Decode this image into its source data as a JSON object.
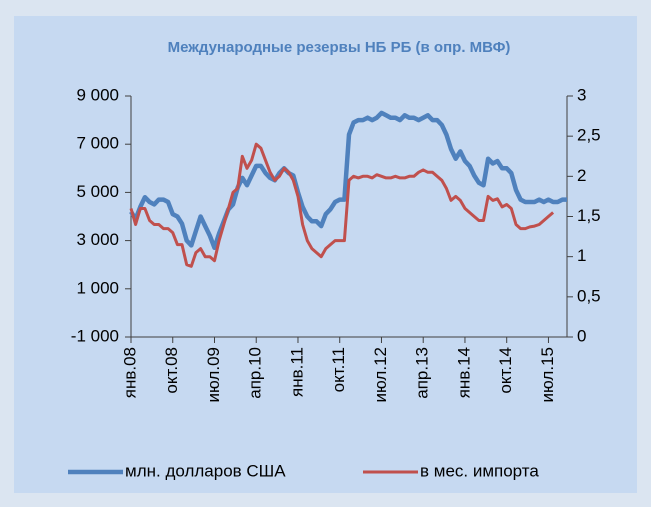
{
  "chart_data": {
    "type": "line",
    "title": "Международные резервы НБ РБ (в опр. МВФ)",
    "categories": [
      "янв.08",
      null,
      null,
      null,
      null,
      null,
      null,
      null,
      null,
      "окт.08",
      null,
      null,
      null,
      null,
      null,
      null,
      null,
      null,
      "июл.09",
      null,
      null,
      null,
      null,
      null,
      null,
      null,
      null,
      "апр.10",
      null,
      null,
      null,
      null,
      null,
      null,
      null,
      null,
      "янв.11",
      null,
      null,
      null,
      null,
      null,
      null,
      null,
      null,
      "окт.11",
      null,
      null,
      null,
      null,
      null,
      null,
      null,
      null,
      "июл.12",
      null,
      null,
      null,
      null,
      null,
      null,
      null,
      null,
      "апр.13",
      null,
      null,
      null,
      null,
      null,
      null,
      null,
      null,
      "янв.14",
      null,
      null,
      null,
      null,
      null,
      null,
      null,
      null,
      "окт.14",
      null,
      null,
      null,
      null,
      null,
      null,
      null,
      null,
      "июл.15",
      null,
      null,
      null,
      null
    ],
    "series": [
      {
        "name": "млн. долларов США",
        "color": "#4f81bd",
        "values": [
          4200,
          3900,
          4400,
          4800,
          4600,
          4500,
          4700,
          4700,
          4600,
          4100,
          4000,
          3700,
          3000,
          2800,
          3400,
          4000,
          3600,
          3200,
          2700,
          3300,
          3800,
          4300,
          4500,
          5200,
          5600,
          5300,
          5700,
          6100,
          6100,
          5800,
          5600,
          5500,
          5800,
          6000,
          5800,
          5700,
          5000,
          4400,
          4000,
          3800,
          3800,
          3600,
          4100,
          4300,
          4600,
          4700,
          4700,
          7400,
          7900,
          8000,
          8000,
          8100,
          8000,
          8100,
          8300,
          8200,
          8100,
          8100,
          8000,
          8200,
          8100,
          8100,
          8000,
          8100,
          8200,
          8000,
          8000,
          7800,
          7400,
          6800,
          6400,
          6700,
          6300,
          6100,
          5700,
          5400,
          5300,
          6400,
          6200,
          6300,
          6000,
          6000,
          5800,
          5100,
          4700,
          4600,
          4600,
          4600,
          4700,
          4600,
          4700,
          4600,
          4600,
          4700,
          4700
        ]
      },
      {
        "name": "в мес. импорта",
        "color": "#c0504d",
        "axis": "y2",
        "values": [
          1.6,
          1.4,
          1.6,
          1.6,
          1.45,
          1.4,
          1.4,
          1.35,
          1.35,
          1.3,
          1.15,
          1.15,
          0.9,
          0.88,
          1.05,
          1.1,
          1.0,
          1.0,
          0.95,
          1.2,
          1.4,
          1.6,
          1.8,
          1.85,
          2.25,
          2.1,
          2.2,
          2.4,
          2.35,
          2.2,
          2.05,
          1.95,
          2.0,
          2.1,
          2.05,
          1.95,
          1.75,
          1.4,
          1.2,
          1.1,
          1.05,
          1.0,
          1.1,
          1.15,
          1.2,
          1.2,
          1.2,
          1.95,
          2.0,
          1.98,
          2.0,
          2.0,
          1.98,
          2.02,
          2.0,
          1.98,
          1.98,
          2.0,
          1.98,
          1.98,
          2.0,
          2.0,
          2.05,
          2.08,
          2.05,
          2.05,
          2.0,
          1.95,
          1.85,
          1.7,
          1.75,
          1.7,
          1.6,
          1.55,
          1.5,
          1.45,
          1.45,
          1.75,
          1.7,
          1.72,
          1.62,
          1.65,
          1.6,
          1.4,
          1.35,
          1.35,
          1.37,
          1.38,
          1.4,
          1.45,
          1.5,
          1.55,
          null,
          null,
          null
        ]
      }
    ],
    "ylim": [
      -1000,
      9000
    ],
    "yticks": [
      {
        "value": -1000,
        "label": "-1 000"
      },
      {
        "value": 1000,
        "label": "1 000"
      },
      {
        "value": 3000,
        "label": "3 000"
      },
      {
        "value": 5000,
        "label": "5 000"
      },
      {
        "value": 7000,
        "label": "7 000"
      },
      {
        "value": 9000,
        "label": "9 000"
      }
    ],
    "y2lim": [
      0,
      3
    ],
    "y2ticks": [
      0,
      {
        "value": 0.5,
        "label": "0,5"
      },
      1,
      {
        "value": 1.5,
        "label": "1,5"
      },
      2,
      {
        "value": 2.5,
        "label": "2,5"
      },
      3
    ],
    "grid": false,
    "legend": "bottom"
  }
}
